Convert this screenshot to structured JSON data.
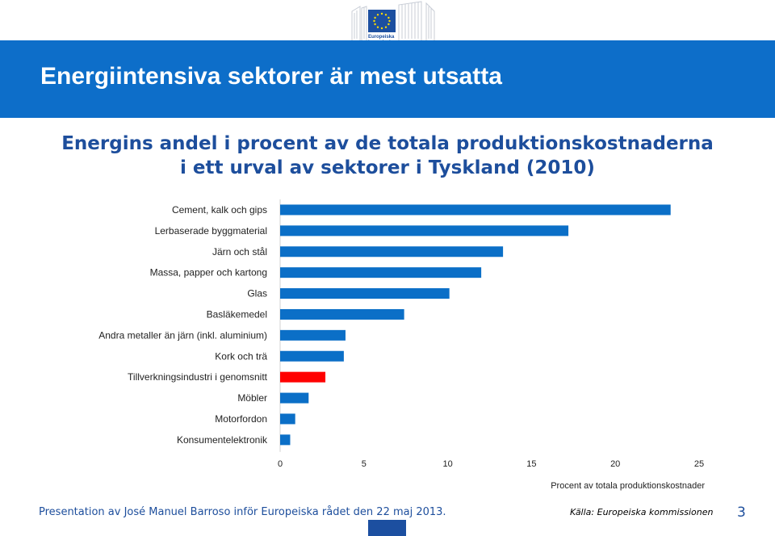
{
  "logo": {
    "line1": "Europeiska",
    "line2": "kommissionen"
  },
  "header": {
    "title": "Energiintensiva sektorer är mest utsatta"
  },
  "subtitle": {
    "line1": "Energins andel i procent av de totala produktionskostnaderna",
    "line2": "i ett urval av sektorer i Tyskland (2010)"
  },
  "colors": {
    "bar": "#0b6fc7",
    "highlight": "#ff0000",
    "band": "#0d6ec9",
    "text_blue": "#1d4e9c"
  },
  "chart_data": {
    "type": "bar",
    "orientation": "horizontal",
    "categories": [
      "Cement, kalk och gips",
      "Lerbaserade byggmaterial",
      "Järn och stål",
      "Massa, papper och kartong",
      "Glas",
      "Basläkemedel",
      "Andra metaller än järn (inkl. aluminium)",
      "Kork och trä",
      "Tillverkningsindustri i genomsnitt",
      "Möbler",
      "Motorfordon",
      "Konsumentelektronik"
    ],
    "values": [
      23.3,
      17.2,
      13.3,
      12.0,
      10.1,
      7.4,
      3.9,
      3.8,
      2.7,
      1.7,
      0.9,
      0.6
    ],
    "highlight_category": "Tillverkningsindustri i genomsnitt",
    "xlim": [
      0,
      25
    ],
    "xticks": [
      0,
      5,
      10,
      15,
      20,
      25
    ],
    "xlabel": "Procent av totala produktionskostnader",
    "grid": false
  },
  "footer": {
    "left": "Presentation av José Manuel Barroso inför Europeiska rådet den 22 maj 2013.",
    "source": "Källa: Europeiska kommissionen",
    "page": "3"
  }
}
